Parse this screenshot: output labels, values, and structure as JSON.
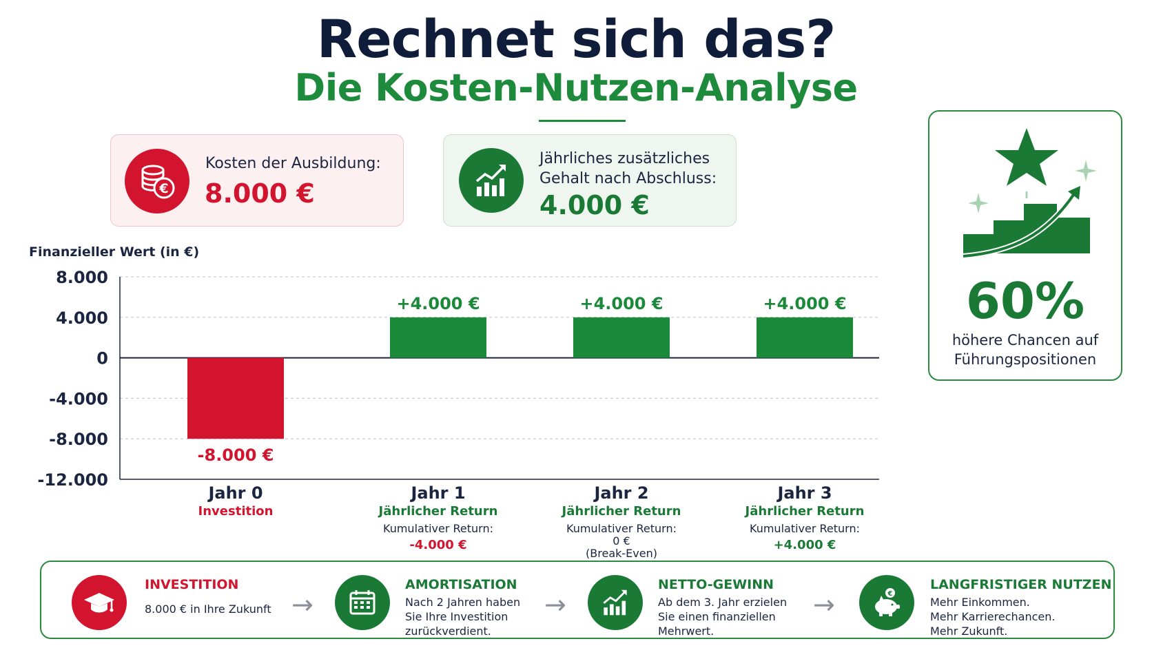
{
  "header": {
    "title": "Rechnet sich das?",
    "subtitle": "Die Kosten-Nutzen-Analyse"
  },
  "cost_card": {
    "label": "Kosten der Ausbildung:",
    "value": "8.000 €",
    "icon": "euro-coins-icon",
    "color": "#d3142f"
  },
  "gain_card": {
    "label": "Jährliches zusätzliches Gehalt nach Abschluss:",
    "value": "4.000 €",
    "icon": "growth-chart-icon",
    "color": "#1a7a35"
  },
  "side_card": {
    "icon": "star-stairs-icon",
    "percent": "60%",
    "text": "höhere Chancen auf Führungspositionen"
  },
  "chart_data": {
    "type": "bar",
    "ylabel": "Finanzieller Wert (in €)",
    "ylim": [
      -12000,
      8000
    ],
    "yticks": [
      8000,
      4000,
      0,
      -4000,
      -8000,
      -12000
    ],
    "ytick_labels": [
      "8.000",
      "4.000",
      "0",
      "-4.000",
      "-8.000",
      "-12.000"
    ],
    "grid": true,
    "categories": [
      "Jahr 0",
      "Jahr 1",
      "Jahr 2",
      "Jahr 3"
    ],
    "values": [
      -8000,
      4000,
      4000,
      4000
    ],
    "data_labels": [
      "-8.000 €",
      "+4.000 €",
      "+4.000 €",
      "+4.000 €"
    ],
    "bar_colors": [
      "#d3142f",
      "#1a8a3a",
      "#1a8a3a",
      "#1a8a3a"
    ],
    "subtitles": [
      "Investition",
      "Jährlicher Return",
      "Jährlicher Return",
      "Jährlicher Return"
    ],
    "cumulative_label": "Kumulativer Return:",
    "cumulative_values": [
      "",
      "-4.000 €",
      "0 €",
      "+4.000 €"
    ],
    "cumulative_notes": [
      "",
      "",
      "(Break-Even)",
      ""
    ]
  },
  "steps": [
    {
      "title": "INVESTITION",
      "text": "8.000 € in Ihre Zukunft",
      "icon": "graduation-cap-icon",
      "color": "#d3142f"
    },
    {
      "title": "AMORTISATION",
      "text": "Nach 2 Jahren haben\nSie Ihre Investition\nzurückverdient.",
      "icon": "calendar-icon",
      "color": "#1a7a35"
    },
    {
      "title": "NETTO-GEWINN",
      "text": "Ab dem 3. Jahr erzielen\nSie einen finanziellen\nMehrwert.",
      "icon": "growth-chart-icon",
      "color": "#1a7a35"
    },
    {
      "title": "LANGFRISTIGER NUTZEN",
      "text": "Mehr Einkommen.\nMehr Karrierechancen.\nMehr Zukunft.",
      "icon": "piggy-bank-icon",
      "color": "#1a7a35"
    }
  ],
  "arrow_icon": "arrow-right-icon"
}
